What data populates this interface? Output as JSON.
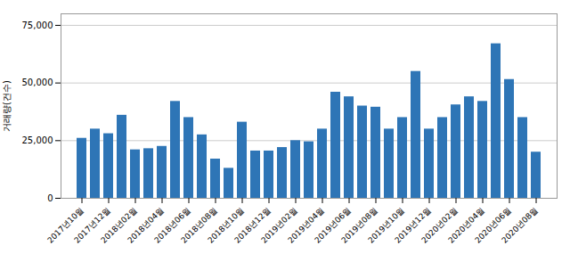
{
  "chart_data": {
    "type": "bar",
    "ylabel": "거래량(건수)",
    "categories": [
      "2017년10월",
      null,
      "2017년12월",
      null,
      "2018년02월",
      null,
      "2018년04월",
      null,
      "2018년06월",
      null,
      "2018년08월",
      null,
      "2018년10월",
      null,
      "2018년12월",
      null,
      "2019년02월",
      null,
      "2019년04월",
      null,
      "2019년06월",
      null,
      "2019년08월",
      null,
      "2019년10월",
      null,
      "2019년12월",
      null,
      "2020년02월",
      null,
      "2020년04월",
      null,
      "2020년06월",
      null,
      "2020년08월"
    ],
    "values": [
      26000,
      30000,
      28000,
      36000,
      21000,
      21500,
      22500,
      42000,
      35000,
      27500,
      17000,
      13000,
      33000,
      20500,
      20500,
      22000,
      25000,
      24500,
      30000,
      46000,
      44000,
      40000,
      39500,
      30000,
      35000,
      55000,
      30000,
      35000,
      40500,
      44000,
      42000,
      67000,
      51500,
      35000,
      20000
    ],
    "color": "#2E75B6",
    "ylim": [
      0,
      80000
    ],
    "yticks": [
      0,
      {
        "value": 25000,
        "label": "25,000"
      },
      {
        "value": 50000,
        "label": "50,000"
      },
      {
        "value": 75000,
        "label": "75,000"
      }
    ],
    "grid": true
  }
}
